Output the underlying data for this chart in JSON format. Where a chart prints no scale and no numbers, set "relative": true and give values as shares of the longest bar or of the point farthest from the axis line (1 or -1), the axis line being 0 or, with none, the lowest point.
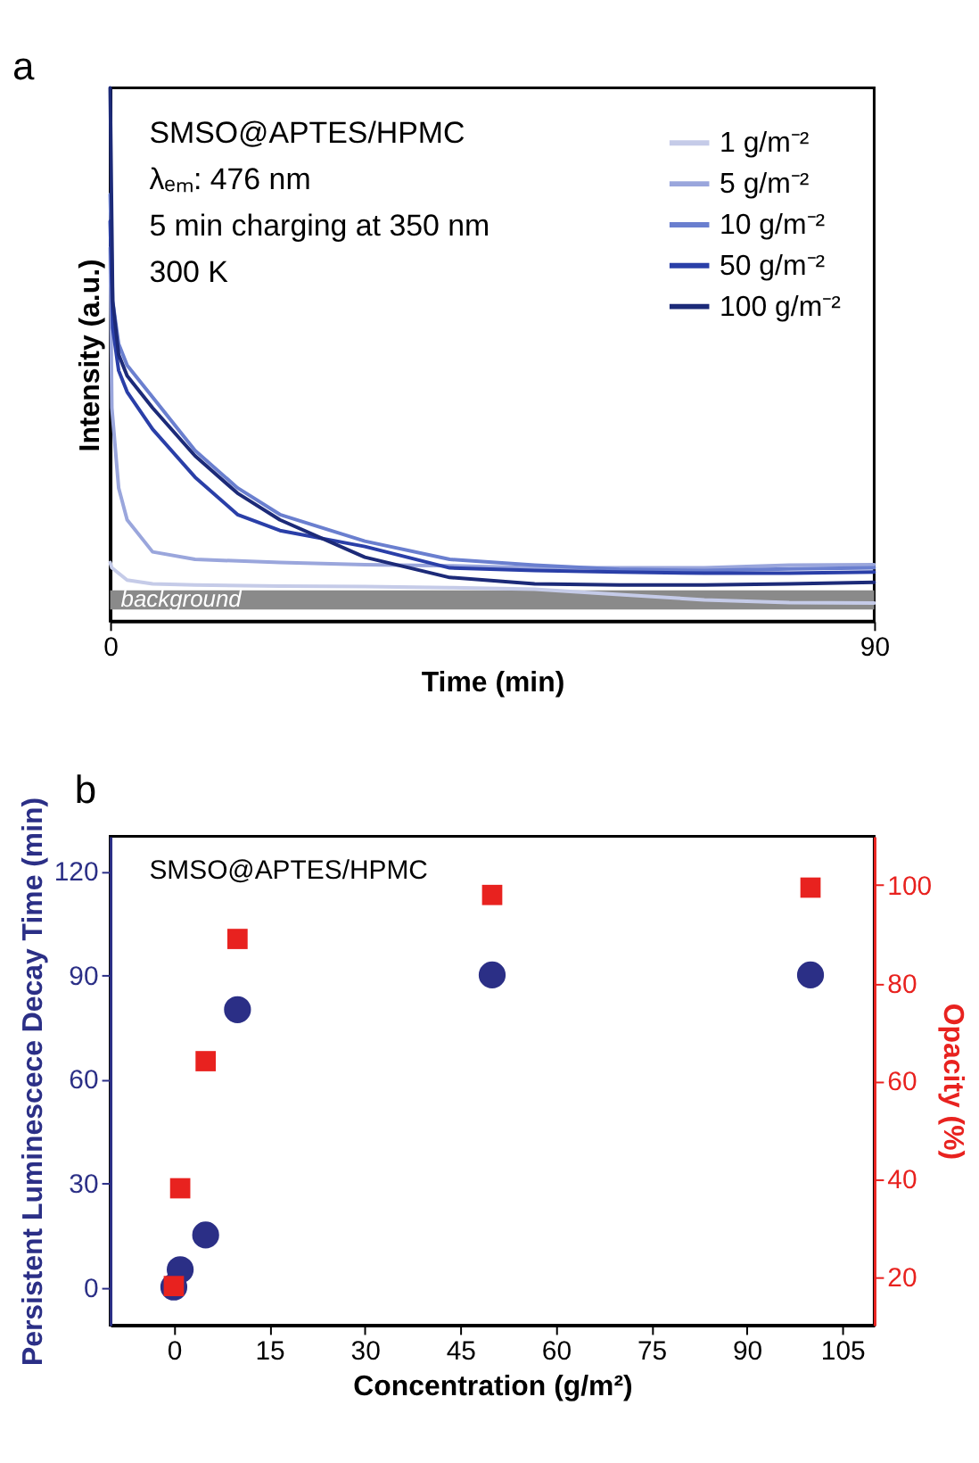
{
  "chart_data": [
    {
      "type": "line",
      "relative": true,
      "xlabel": "Time (min)",
      "ylabel": "Intensity (a.u.)",
      "xlim": [
        0,
        90
      ],
      "xticks": [
        0,
        90
      ],
      "legend": "top right",
      "grid": false,
      "line_style": "solid",
      "marker": "none",
      "annotations": [
        "a",
        "SMSO@APTES/HPMC",
        "λₑₘ: 476 nm",
        "5  min charging at 350 nm",
        "300 K"
      ],
      "bands": [
        {
          "axis": "y",
          "from": 0.022,
          "to": 0.058,
          "label": "background",
          "color": "#8a8a8a"
        }
      ],
      "series": [
        {
          "name": "1 g/m⁻²",
          "color": "#c5cbe8",
          "x": [
            0,
            0.2,
            2,
            5,
            10,
            20,
            30,
            40,
            50,
            60,
            70,
            80,
            90
          ],
          "values": [
            0.11,
            0.1,
            0.077,
            0.07,
            0.068,
            0.066,
            0.065,
            0.063,
            0.06,
            0.05,
            0.04,
            0.035,
            0.034
          ]
        },
        {
          "name": "5 g/m⁻²",
          "color": "#9aa6dc",
          "x": [
            0,
            0.2,
            1,
            2,
            5,
            10,
            20,
            30,
            40,
            50,
            60,
            70,
            80,
            90
          ],
          "values": [
            0.7,
            0.4,
            0.25,
            0.19,
            0.13,
            0.116,
            0.11,
            0.106,
            0.104,
            0.1,
            0.1,
            0.1,
            0.105,
            0.106
          ]
        },
        {
          "name": "10 g/m⁻²",
          "color": "#6a7fcf",
          "x": [
            0,
            0.3,
            1,
            2,
            5,
            10,
            15,
            20,
            30,
            40,
            50,
            60,
            70,
            80,
            90
          ],
          "values": [
            0.8,
            0.6,
            0.52,
            0.48,
            0.42,
            0.32,
            0.25,
            0.2,
            0.15,
            0.116,
            0.105,
            0.097,
            0.095,
            0.098,
            0.1
          ]
        },
        {
          "name": "50 g/m⁻²",
          "color": "#2a3fa8",
          "x": [
            0,
            0.3,
            1,
            2,
            5,
            10,
            15,
            20,
            30,
            40,
            50,
            60,
            70,
            80,
            90
          ],
          "values": [
            0.75,
            0.55,
            0.47,
            0.43,
            0.36,
            0.27,
            0.2,
            0.17,
            0.14,
            0.1,
            0.095,
            0.092,
            0.09,
            0.09,
            0.092
          ]
        },
        {
          "name": "100 g/m⁻²",
          "color": "#1c2a78",
          "x": [
            0,
            0.3,
            1,
            2,
            5,
            10,
            15,
            20,
            30,
            40,
            50,
            60,
            70,
            80,
            90
          ],
          "values": [
            1,
            0.6,
            0.5,
            0.46,
            0.4,
            0.31,
            0.24,
            0.19,
            0.12,
            0.082,
            0.07,
            0.068,
            0.068,
            0.07,
            0.073
          ]
        }
      ]
    },
    {
      "type": "scatter",
      "xlabel": "Concentration (g/m²)",
      "ylabel": "Persistent Luminescece Decay Time (min)",
      "y2label": "Opacity (%)",
      "xlim": [
        -10,
        110
      ],
      "xticks": [
        0,
        15,
        30,
        45,
        60,
        75,
        90,
        105
      ],
      "ylim": [
        -11,
        130
      ],
      "yticks": [
        0,
        30,
        60,
        90,
        120
      ],
      "y2lim": [
        10,
        110
      ],
      "y2ticks": [
        20,
        40,
        60,
        80,
        100
      ],
      "grid": false,
      "legend": false,
      "annotations": [
        "b",
        "SMSO@APTES/HPMC"
      ],
      "x": [
        0,
        1,
        5,
        10,
        50,
        100
      ],
      "series": [
        {
          "color": "#2b2f86",
          "marker": "circle",
          "values": [
            0,
            5,
            15,
            80,
            90,
            90
          ]
        },
        {
          "color": "#e8221f",
          "marker": "square",
          "axis": "y2",
          "values": [
            18,
            38,
            64,
            89,
            98,
            99.5
          ]
        }
      ]
    }
  ]
}
